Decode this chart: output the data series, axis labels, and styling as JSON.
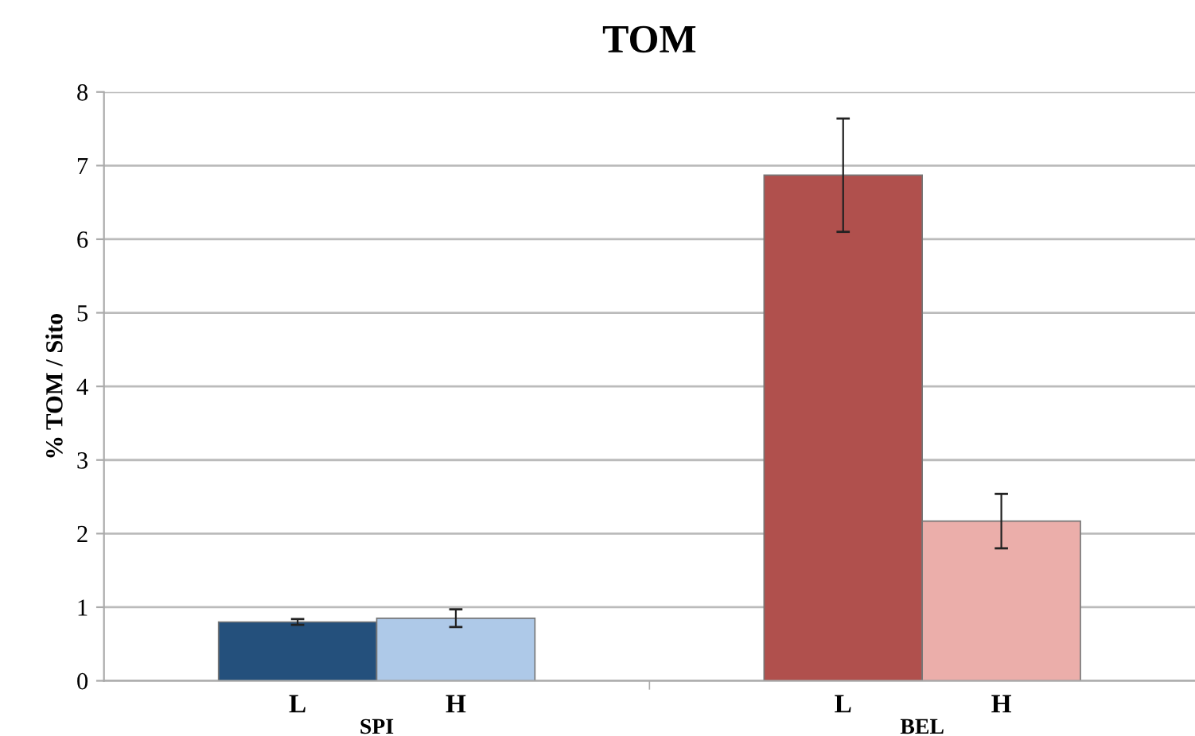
{
  "chart_data": {
    "type": "bar",
    "title": "TOM",
    "ylabel": "% TOM / Sito",
    "categories": [
      "L",
      "H",
      "L",
      "H"
    ],
    "values": [
      0.8,
      0.85,
      6.87,
      2.17
    ],
    "errors": [
      0.04,
      0.12,
      0.77,
      0.37
    ],
    "colors": [
      "#24507c",
      "#aec9e8",
      "#b0504d",
      "#ebaeaa"
    ],
    "annotations": [
      "SPI",
      "BEL"
    ],
    "ylim": [
      0,
      8
    ],
    "yticks": [
      0,
      1,
      2,
      3,
      4,
      5,
      6,
      7,
      8
    ],
    "grid": "y"
  }
}
